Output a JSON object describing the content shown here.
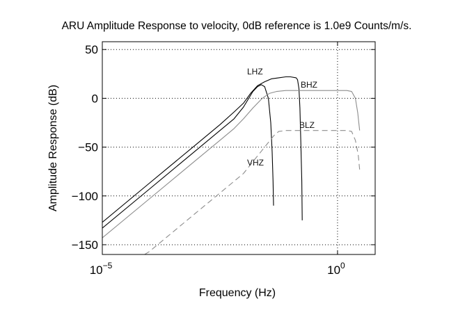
{
  "chart_data": {
    "type": "line",
    "title": "ARU Amplitude Response to velocity, 0dB reference is 1.0e9 Counts/m/s.",
    "xlabel": "Frequency (Hz)",
    "ylabel": "Amplitude Response (dB)",
    "xscale": "log",
    "xlim_log10": [
      -5,
      0.8
    ],
    "ylim": [
      -160,
      58
    ],
    "grid": true,
    "x_ticks": [
      {
        "log10": -5,
        "base": "10",
        "exp": "−5"
      },
      {
        "log10": 0,
        "base": "10",
        "exp": "0"
      }
    ],
    "y_ticks": [
      {
        "value": 50,
        "label": "50"
      },
      {
        "value": 0,
        "label": "0"
      },
      {
        "value": -50,
        "label": "−50"
      },
      {
        "value": -100,
        "label": "−100"
      },
      {
        "value": -150,
        "label": "−150"
      }
    ],
    "series": [
      {
        "name": "LHZ",
        "color": "#000000",
        "dash": "",
        "points": [
          [
            -5,
            -127
          ],
          [
            -4,
            -87
          ],
          [
            -3,
            -47
          ],
          [
            -2.5,
            -27
          ],
          [
            -2.2,
            -14
          ],
          [
            -2.0,
            -5
          ],
          [
            -1.85,
            5
          ],
          [
            -1.7,
            13
          ],
          [
            -1.55,
            17
          ],
          [
            -1.4,
            20
          ],
          [
            -1.25,
            21
          ],
          [
            -1.1,
            22
          ],
          [
            -1.0,
            22
          ],
          [
            -0.88,
            21
          ],
          [
            -0.85,
            19
          ],
          [
            -0.82,
            10
          ],
          [
            -0.8,
            -10
          ],
          [
            -0.78,
            -45
          ],
          [
            -0.76,
            -85
          ],
          [
            -0.75,
            -125
          ]
        ]
      },
      {
        "name": "VHZ",
        "color": "#000000",
        "dash": "",
        "points": [
          [
            -5,
            -133
          ],
          [
            -4,
            -93
          ],
          [
            -3,
            -53
          ],
          [
            -2.5,
            -33
          ],
          [
            -2.2,
            -21
          ],
          [
            -2.0,
            -9
          ],
          [
            -1.9,
            -1
          ],
          [
            -1.8,
            7
          ],
          [
            -1.7,
            12
          ],
          [
            -1.62,
            14
          ],
          [
            -1.55,
            12
          ],
          [
            -1.47,
            0
          ],
          [
            -1.42,
            -25
          ],
          [
            -1.39,
            -55
          ],
          [
            -1.37,
            -85
          ],
          [
            -1.36,
            -110
          ]
        ]
      },
      {
        "name": "BHZ",
        "color": "#8c8c8c",
        "dash": "",
        "points": [
          [
            -5,
            -143
          ],
          [
            -4,
            -103
          ],
          [
            -3,
            -63
          ],
          [
            -2.5,
            -43
          ],
          [
            -2.2,
            -31
          ],
          [
            -2.0,
            -21
          ],
          [
            -1.8,
            -10
          ],
          [
            -1.6,
            0
          ],
          [
            -1.45,
            5
          ],
          [
            -1.3,
            7
          ],
          [
            -1.1,
            8
          ],
          [
            0,
            8
          ],
          [
            0.2,
            8
          ],
          [
            0.3,
            7
          ],
          [
            0.38,
            0
          ],
          [
            0.43,
            -15
          ],
          [
            0.47,
            -33
          ]
        ]
      },
      {
        "name": "BLZ",
        "color": "#8c8c8c",
        "dash": "8,5",
        "points": [
          [
            -4.1,
            -160
          ],
          [
            -4,
            -157
          ],
          [
            -3,
            -117
          ],
          [
            -2.5,
            -97
          ],
          [
            -2.0,
            -77
          ],
          [
            -1.75,
            -62
          ],
          [
            -1.5,
            -47
          ],
          [
            -1.35,
            -38
          ],
          [
            -1.25,
            -34
          ],
          [
            -1.1,
            -33
          ],
          [
            -0.5,
            -33
          ],
          [
            0.2,
            -33
          ],
          [
            0.3,
            -34
          ],
          [
            0.38,
            -43
          ],
          [
            0.44,
            -58
          ],
          [
            0.47,
            -73
          ]
        ]
      }
    ],
    "series_labels": [
      "LHZ",
      "BHZ",
      "BLZ",
      "VHZ"
    ]
  }
}
